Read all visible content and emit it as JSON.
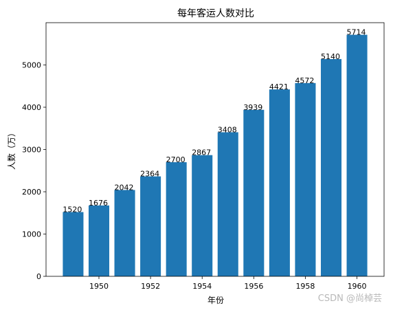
{
  "chart_data": {
    "type": "bar",
    "title": "每年客运人数对比",
    "xlabel": "年份",
    "ylabel": "人数（万）",
    "categories": [
      1949,
      1950,
      1951,
      1952,
      1953,
      1954,
      1955,
      1956,
      1957,
      1958,
      1959,
      1960
    ],
    "values": [
      1520,
      1676,
      2042,
      2364,
      2700,
      2867,
      3408,
      3939,
      4421,
      4572,
      5140,
      5714
    ],
    "data_labels": [
      "1520",
      "1676",
      "2042",
      "2364",
      "2700",
      "2867",
      "3408",
      "3939",
      "4421",
      "4572",
      "5140",
      "5714"
    ],
    "x_ticks": [
      1950,
      1952,
      1954,
      1956,
      1958,
      1960
    ],
    "y_ticks": [
      0,
      1000,
      2000,
      3000,
      4000,
      5000
    ],
    "xlim": [
      1947.95,
      1961.05
    ],
    "ylim": [
      0,
      6000
    ],
    "grid": false,
    "bar_color": "#1f77b4"
  },
  "watermark": "CSDN @尚棹芸"
}
